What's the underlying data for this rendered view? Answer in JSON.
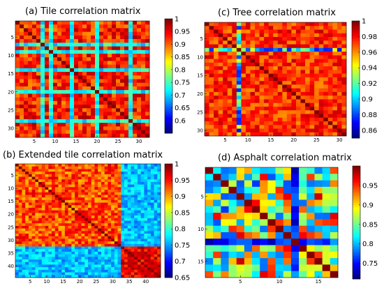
{
  "chart_data": [
    {
      "type": "heatmap",
      "title": "(a) Tile correlation matrix",
      "n": 32,
      "vmin": 0.55,
      "vmax": 1,
      "colormap": "jet",
      "seed": 11,
      "base": 0.93,
      "spread": 0.05,
      "lowRows": [
        7,
        9,
        14,
        20,
        28
      ],
      "lowValue": 0.72,
      "blocks": [],
      "xticks": [
        "5",
        "10",
        "15",
        "20",
        "25",
        "30"
      ],
      "xtickValues": [
        5,
        10,
        15,
        20,
        25,
        30
      ],
      "yticks": [
        "5",
        "10",
        "15",
        "20",
        "25",
        "30"
      ],
      "ytickValues": [
        5,
        10,
        15,
        20,
        25,
        30
      ],
      "colorbar": [
        "1",
        "0.95",
        "0.9",
        "0.85",
        "0.8",
        "0.75",
        "0.7",
        "0.65",
        "0.6"
      ],
      "colorbarValues": [
        1,
        0.95,
        0.9,
        0.85,
        0.8,
        0.75,
        0.7,
        0.65,
        0.6
      ]
    },
    {
      "type": "heatmap",
      "title": "(c) Tree correlation matrix",
      "n": 31,
      "vmin": 0.85,
      "vmax": 1,
      "colormap": "jet",
      "seed": 23,
      "base": 0.975,
      "spread": 0.015,
      "lowRows": [
        8
      ],
      "lowValue": 0.91,
      "blocks": [],
      "xticks": [
        "5",
        "10",
        "15",
        "20",
        "25",
        "30"
      ],
      "xtickValues": [
        5,
        10,
        15,
        20,
        25,
        30
      ],
      "yticks": [
        "5",
        "10",
        "15",
        "20",
        "25",
        "30"
      ],
      "ytickValues": [
        5,
        10,
        15,
        20,
        25,
        30
      ],
      "colorbar": [
        "1",
        "0.98",
        "0.96",
        "0.94",
        "0.92",
        "0.9",
        "0.88",
        "0.86"
      ],
      "colorbarValues": [
        1,
        0.98,
        0.96,
        0.94,
        0.92,
        0.9,
        0.88,
        0.86
      ]
    },
    {
      "type": "heatmap",
      "title": "(b) Extended tile correlation matrix",
      "n": 44,
      "vmin": 0.65,
      "vmax": 1,
      "colormap": "jet",
      "seed": 37,
      "base": 0.93,
      "spread": 0.04,
      "lowRows": [],
      "lowValue": 0.8,
      "blocks": [
        {
          "rows": [
            33,
            44
          ],
          "cols": [
            1,
            32
          ],
          "value": 0.76,
          "spread": 0.03
        },
        {
          "rows": [
            1,
            32
          ],
          "cols": [
            33,
            44
          ],
          "value": 0.76,
          "spread": 0.03
        },
        {
          "rows": [
            33,
            44
          ],
          "cols": [
            33,
            44
          ],
          "value": 0.96,
          "spread": 0.03
        }
      ],
      "xticks": [
        "5",
        "10",
        "15",
        "20",
        "25",
        "30",
        "35",
        "40"
      ],
      "xtickValues": [
        5,
        10,
        15,
        20,
        25,
        30,
        35,
        40
      ],
      "yticks": [
        "5",
        "10",
        "15",
        "20",
        "25",
        "30",
        "35",
        "40"
      ],
      "ytickValues": [
        5,
        10,
        15,
        20,
        25,
        30,
        35,
        40
      ],
      "colorbar": [
        "1",
        "0.95",
        "0.9",
        "0.85",
        "0.8",
        "0.75",
        "0.7",
        "0.65"
      ],
      "colorbarValues": [
        1,
        0.95,
        0.9,
        0.85,
        0.8,
        0.75,
        0.7,
        0.65
      ]
    },
    {
      "type": "heatmap",
      "title": "(d) Asphalt correlation matrix",
      "n": 17,
      "vmin": 0.71,
      "vmax": 1,
      "colormap": "jet",
      "seed": 53,
      "base": 0.87,
      "spread": 0.11,
      "lowRows": [
        12
      ],
      "lowValue": 0.76,
      "blocks": [],
      "xticks": [
        "5",
        "10",
        "15"
      ],
      "xtickValues": [
        5,
        10,
        15
      ],
      "yticks": [
        "5",
        "10",
        "15"
      ],
      "ytickValues": [
        5,
        10,
        15
      ],
      "colorbar": [
        "0.95",
        "0.9",
        "0.85",
        "0.8",
        "0.75"
      ],
      "colorbarValues": [
        0.95,
        0.9,
        0.85,
        0.8,
        0.75
      ]
    }
  ]
}
